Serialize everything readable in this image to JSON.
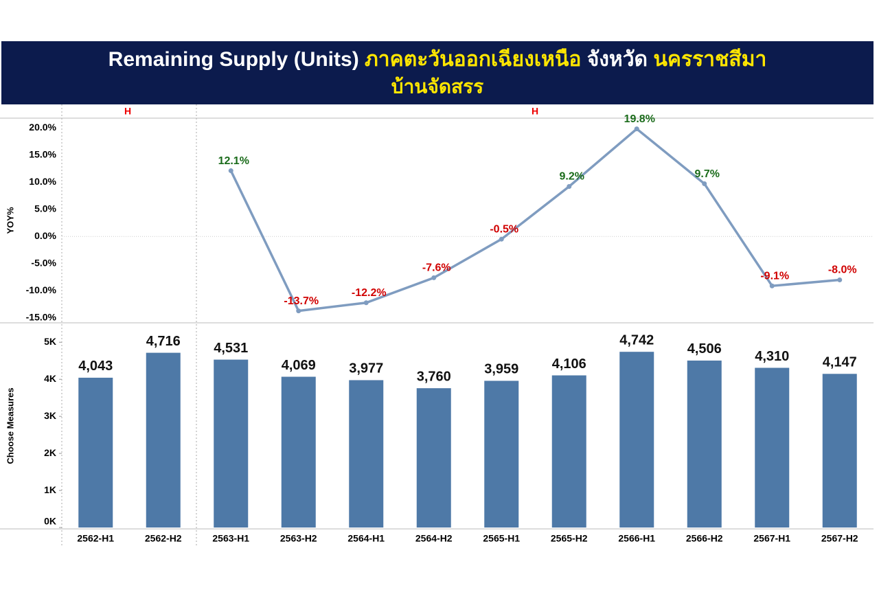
{
  "header": {
    "title": "Remaining Supply (Units)",
    "region": "ภาคตะวันออกเฉียงเหนือ",
    "province_label": "จังหวัด",
    "province": "นครราชสีมา",
    "subtitle": "บ้านจัดสรร"
  },
  "group_labels": [
    "H",
    "H"
  ],
  "chart_data": [
    {
      "type": "line",
      "y_label": "YOY%",
      "categories": [
        "2562-H1",
        "2562-H2",
        "2563-H1",
        "2563-H2",
        "2564-H1",
        "2564-H2",
        "2565-H1",
        "2565-H2",
        "2566-H1",
        "2566-H2",
        "2567-H1",
        "2567-H2"
      ],
      "values": [
        null,
        null,
        12.1,
        -13.7,
        -12.2,
        -7.6,
        -0.5,
        9.2,
        19.8,
        9.7,
        -9.1,
        -8.0
      ],
      "value_labels": [
        null,
        null,
        "12.1%",
        "-13.7%",
        "-12.2%",
        "-7.6%",
        "-0.5%",
        "9.2%",
        "19.8%",
        "9.7%",
        "-9.1%",
        "-8.0%"
      ],
      "color": "#7f9cc0",
      "positive_label_color": "#1a6b1a",
      "negative_label_color": "#d00000",
      "ylim": [
        -15.9,
        21.4
      ],
      "yticks": [
        {
          "value": 20,
          "label": "20.0%"
        },
        {
          "value": 15,
          "label": "15.0%"
        },
        {
          "value": 10,
          "label": "10.0%"
        },
        {
          "value": 5,
          "label": "5.0%"
        },
        {
          "value": 0,
          "label": "0.0%"
        },
        {
          "value": -5,
          "label": "-5.0%"
        },
        {
          "value": -10,
          "label": "-10.0%"
        },
        {
          "value": -15,
          "label": "-15.0%"
        }
      ]
    },
    {
      "type": "bar",
      "y_label": "Choose Measures",
      "categories": [
        "2562-H1",
        "2562-H2",
        "2563-H1",
        "2563-H2",
        "2564-H1",
        "2564-H2",
        "2565-H1",
        "2565-H2",
        "2566-H1",
        "2566-H2",
        "2567-H1",
        "2567-H2"
      ],
      "values": [
        4043,
        4716,
        4531,
        4069,
        3977,
        3760,
        3959,
        4106,
        4742,
        4506,
        4310,
        4147
      ],
      "value_labels": [
        "4,043",
        "4,716",
        "4,531",
        "4,069",
        "3,977",
        "3,760",
        "3,959",
        "4,106",
        "4,742",
        "4,506",
        "4,310",
        "4,147"
      ],
      "color": "#4e79a7",
      "ylim": [
        0,
        5450
      ],
      "yticks": [
        {
          "value": 5000,
          "label": "5K"
        },
        {
          "value": 4000,
          "label": "4K"
        },
        {
          "value": 3000,
          "label": "3K"
        },
        {
          "value": 2000,
          "label": "2K"
        },
        {
          "value": 1000,
          "label": "1K"
        },
        {
          "value": 0,
          "label": "0K"
        }
      ]
    }
  ]
}
